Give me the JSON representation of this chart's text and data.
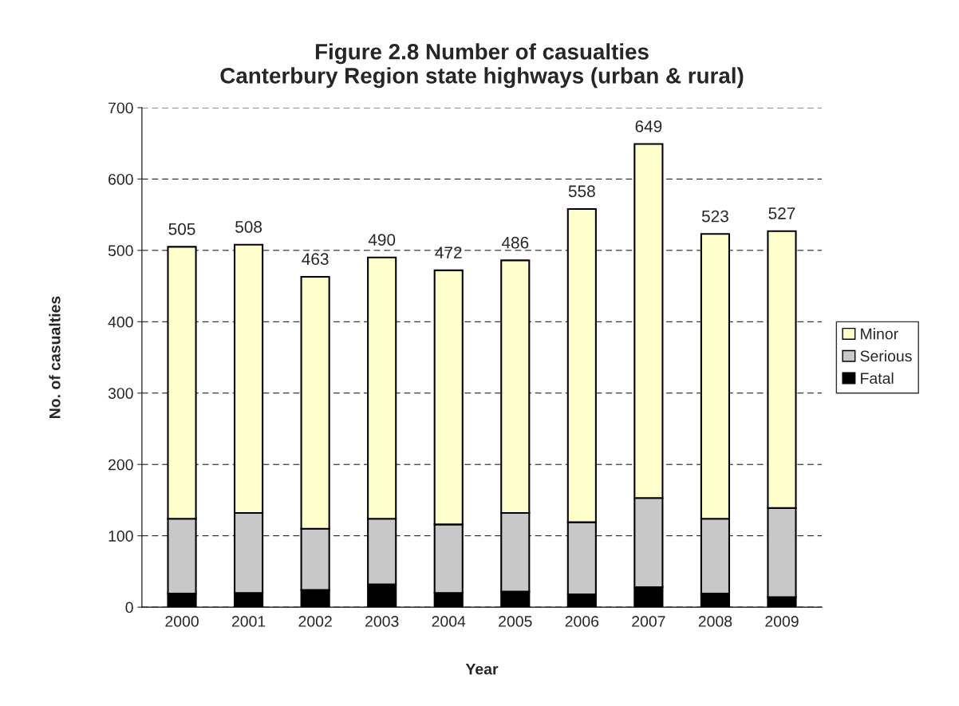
{
  "chart_data": {
    "type": "bar",
    "stacked": true,
    "title": "Figure 2.8 Number of casualties\nCanterbury Region state highways (urban & rural)",
    "xlabel": "Year",
    "ylabel": "No. of casualties",
    "categories": [
      "2000",
      "2001",
      "2002",
      "2003",
      "2004",
      "2005",
      "2006",
      "2007",
      "2008",
      "2009"
    ],
    "series": [
      {
        "name": "Fatal",
        "color": "#000000",
        "values": [
          19,
          20,
          24,
          32,
          20,
          22,
          18,
          28,
          19,
          14
        ]
      },
      {
        "name": "Serious",
        "color": "#c8c8c8",
        "values": [
          105,
          112,
          86,
          92,
          96,
          110,
          101,
          125,
          105,
          125
        ]
      },
      {
        "name": "Minor",
        "color": "#ffffcc",
        "values": [
          381,
          376,
          353,
          366,
          356,
          354,
          439,
          496,
          399,
          388
        ]
      }
    ],
    "totals": [
      "505",
      "508",
      "463",
      "490",
      "472",
      "486",
      "558",
      "649",
      "523",
      "527"
    ],
    "ylim": [
      0,
      700
    ],
    "yticks": [
      0,
      100,
      200,
      300,
      400,
      500,
      600,
      700
    ],
    "grid": "y",
    "legend": "right"
  }
}
